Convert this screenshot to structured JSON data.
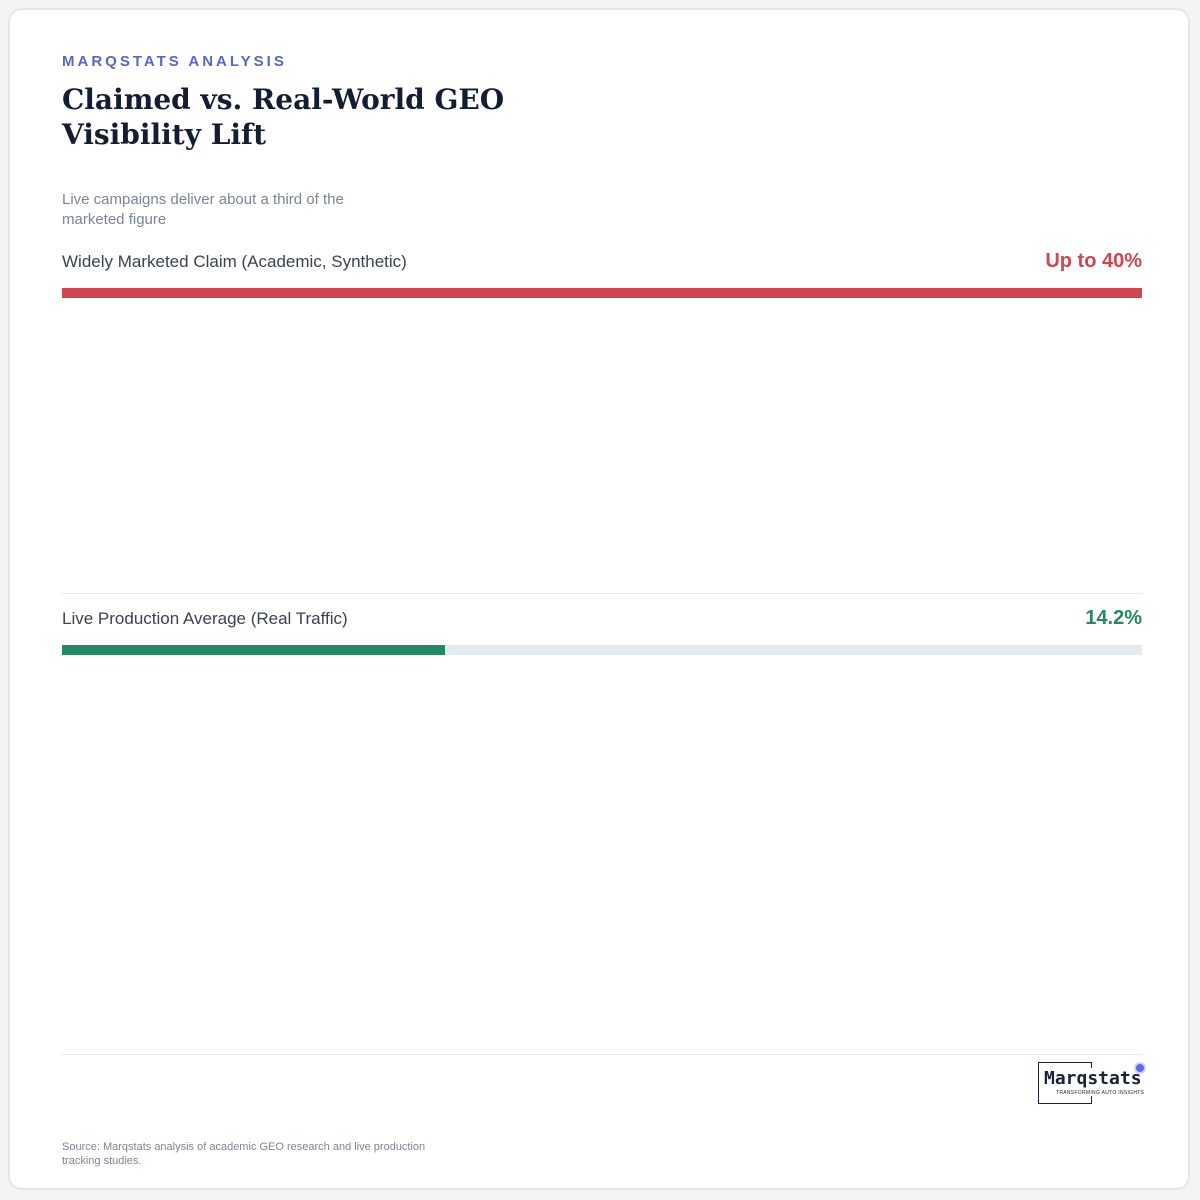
{
  "header": {
    "kicker": "MARQSTATS ANALYSIS",
    "title": "Claimed vs. Real-World GEO Visibility Lift",
    "subtitle": "Live campaigns deliver about a third of the marketed figure"
  },
  "chart_data": {
    "type": "bar",
    "orientation": "horizontal",
    "title": "Claimed vs. Real-World GEO Visibility Lift",
    "subtitle": "Live campaigns deliver about a third of the marketed figure",
    "xlim": [
      0,
      40
    ],
    "categories": [
      "Widely Marketed Claim (Academic, Synthetic)",
      "Live Production Average (Real Traffic)"
    ],
    "values": [
      40,
      14.2
    ],
    "value_labels": [
      "Up to 40%",
      "14.2%"
    ],
    "colors": [
      "#d0454f",
      "#238a63"
    ],
    "track_color": "#e4eaf0",
    "grid": false
  },
  "logo": {
    "wordmark": "Marqstats",
    "tagline": "TRANSFORMING AUTO INSIGHTS"
  },
  "footer": {
    "source": "Source: Marqstats analysis of academic GEO research and live production tracking studies."
  }
}
